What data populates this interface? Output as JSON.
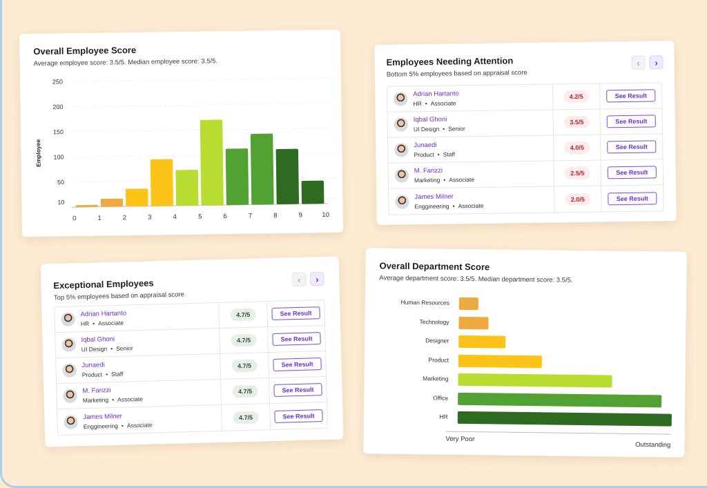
{
  "colors": {
    "accent": "#6b2fd3",
    "background": "#fdebd3",
    "bad_score": "#b4262b",
    "good_score": "#2f4a36"
  },
  "employee_score": {
    "title": "Overall Employee Score",
    "subtitle": "Average employee score: 3.5/5. Median employee score: 3.5/5."
  },
  "attention": {
    "title": "Employees Needing Attention",
    "subtitle": "Bottom 5% employees based on appraisal score",
    "prev_icon": "‹",
    "next_icon": "›",
    "rows": [
      {
        "name": "Adrian Hartanto",
        "dept": "HR",
        "role": "Associate",
        "score": "4.2/5",
        "action": "See Result"
      },
      {
        "name": "Iqbal Ghoni",
        "dept": "UI Design",
        "role": "Senior",
        "score": "3.5/5",
        "action": "See Result"
      },
      {
        "name": "Junaedi",
        "dept": "Product",
        "role": "Staff",
        "score": "4.0/5",
        "action": "See Result"
      },
      {
        "name": "M. Farizzi",
        "dept": "Marketing",
        "role": "Associate",
        "score": "2.5/5",
        "action": "See Result"
      },
      {
        "name": "James Milner",
        "dept": "Enggineering",
        "role": "Associate",
        "score": "2.0/5",
        "action": "See Result"
      }
    ]
  },
  "exceptional": {
    "title": "Exceptional Employees",
    "subtitle": "Top 5% employees based on appraisal score",
    "prev_icon": "‹",
    "next_icon": "›",
    "rows": [
      {
        "name": "Adrian Hartanto",
        "dept": "HR",
        "role": "Associate",
        "score": "4.7/5",
        "action": "See Result"
      },
      {
        "name": "Iqbal Ghoni",
        "dept": "UI Design",
        "role": "Senior",
        "score": "4.7/5",
        "action": "See Result"
      },
      {
        "name": "Junaedi",
        "dept": "Product",
        "role": "Staff",
        "score": "4.7/5",
        "action": "See Result"
      },
      {
        "name": "M. Farizzi",
        "dept": "Marketing",
        "role": "Associate",
        "score": "4.7/5",
        "action": "See Result"
      },
      {
        "name": "James Milner",
        "dept": "Enggineering",
        "role": "Associate",
        "score": "4.7/5",
        "action": "See Result"
      }
    ]
  },
  "department": {
    "title": "Overall Department Score",
    "subtitle": "Average department score: 3.5/5. Median department score: 3.5/5.",
    "axis_min_label": "Very Poor",
    "axis_max_label": "Outstanding"
  },
  "chart_data": [
    {
      "type": "bar",
      "title": "Overall Employee Score",
      "ylabel": "Employee",
      "xlabel": "",
      "yticks": [
        10,
        50,
        100,
        150,
        200,
        250
      ],
      "ylim": [
        0,
        250
      ],
      "xticks": [
        0,
        1,
        2,
        3,
        4,
        5,
        6,
        7,
        8,
        9,
        10
      ],
      "grid": true,
      "bins": [
        {
          "x0": 0,
          "x1": 1,
          "value": 4,
          "color": "#f0a93f"
        },
        {
          "x0": 1,
          "x1": 2,
          "value": 16,
          "color": "#f0a93f"
        },
        {
          "x0": 2,
          "x1": 3,
          "value": 35,
          "color": "#fcc419"
        },
        {
          "x0": 3,
          "x1": 4,
          "value": 93,
          "color": "#fcc419"
        },
        {
          "x0": 4,
          "x1": 5,
          "value": 71,
          "color": "#b8dc2f"
        },
        {
          "x0": 5,
          "x1": 6,
          "value": 170,
          "color": "#b8dc2f"
        },
        {
          "x0": 6,
          "x1": 7,
          "value": 112,
          "color": "#51a232"
        },
        {
          "x0": 7,
          "x1": 8,
          "value": 141,
          "color": "#51a232"
        },
        {
          "x0": 8,
          "x1": 9,
          "value": 110,
          "color": "#2e6a1f"
        },
        {
          "x0": 9,
          "x1": 10,
          "value": 46,
          "color": "#2e6a1f"
        }
      ]
    },
    {
      "type": "bar",
      "orientation": "horizontal",
      "title": "Overall Department Score",
      "categories": [
        "Human Resources",
        "Technology",
        "Designer",
        "Product",
        "Marketing",
        "Office",
        "HR"
      ],
      "values": [
        0.09,
        0.14,
        0.22,
        0.39,
        0.72,
        0.95,
        1.0
      ],
      "colors": [
        "#f0a93f",
        "#f0a93f",
        "#fcc419",
        "#fcc419",
        "#b8dc2f",
        "#51a232",
        "#2e6a1f"
      ],
      "xlabel_min": "Very Poor",
      "xlabel_max": "Outstanding"
    }
  ]
}
